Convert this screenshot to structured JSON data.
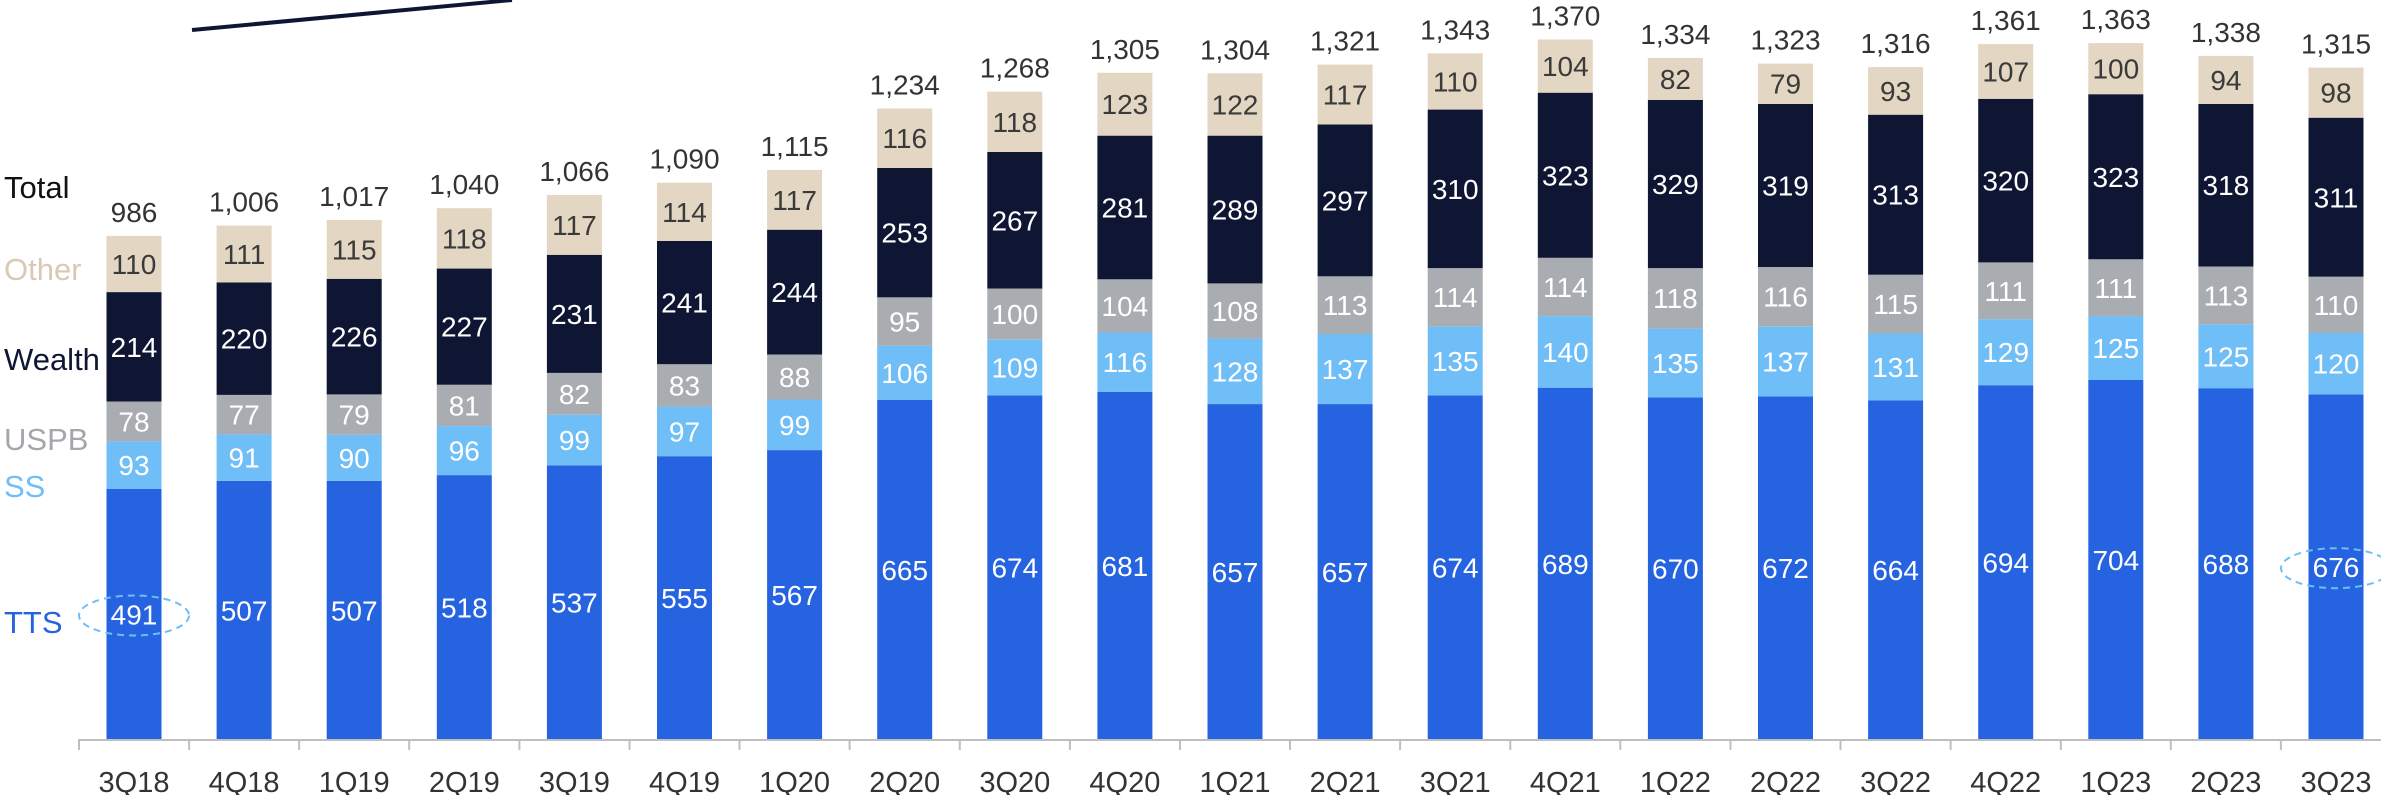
{
  "chart_data": {
    "type": "bar",
    "stacked": true,
    "title": "",
    "xlabel": "",
    "ylabel": "",
    "categories": [
      "3Q18",
      "4Q18",
      "1Q19",
      "2Q19",
      "3Q19",
      "4Q19",
      "1Q20",
      "2Q20",
      "3Q20",
      "4Q20",
      "1Q21",
      "2Q21",
      "3Q21",
      "4Q21",
      "1Q22",
      "2Q22",
      "3Q22",
      "4Q22",
      "1Q23",
      "2Q23",
      "3Q23"
    ],
    "series": [
      {
        "name": "TTS",
        "color": "#2563e0",
        "label_color": "#ffffff",
        "values": [
          491,
          507,
          507,
          518,
          537,
          555,
          567,
          665,
          674,
          681,
          657,
          657,
          674,
          689,
          670,
          672,
          664,
          694,
          704,
          688,
          676
        ]
      },
      {
        "name": "SS",
        "color": "#6fbef7",
        "label_color": "#ffffff",
        "values": [
          93,
          91,
          90,
          96,
          99,
          97,
          99,
          106,
          109,
          116,
          128,
          137,
          135,
          140,
          135,
          137,
          131,
          129,
          125,
          125,
          120
        ]
      },
      {
        "name": "USPB",
        "color": "#a9adb1",
        "label_color": "#ffffff",
        "values": [
          78,
          77,
          79,
          81,
          82,
          83,
          88,
          95,
          100,
          104,
          108,
          113,
          114,
          114,
          118,
          116,
          115,
          111,
          111,
          113,
          110
        ]
      },
      {
        "name": "Wealth",
        "color": "#0e1633",
        "label_color": "#ffffff",
        "values": [
          214,
          220,
          226,
          227,
          231,
          241,
          244,
          253,
          267,
          281,
          289,
          297,
          310,
          323,
          329,
          319,
          313,
          320,
          323,
          318,
          311
        ]
      },
      {
        "name": "Other",
        "color": "#e3d6c2",
        "label_color": "#3a3a3a",
        "values": [
          110,
          111,
          115,
          118,
          117,
          114,
          117,
          116,
          118,
          123,
          122,
          117,
          110,
          104,
          82,
          79,
          93,
          107,
          100,
          94,
          98
        ]
      }
    ],
    "totals": [
      "986",
      "1,006",
      "1,017",
      "1,040",
      "1,066",
      "1,090",
      "1,115",
      "1,234",
      "1,268",
      "1,305",
      "1,304",
      "1,321",
      "1,343",
      "1,370",
      "1,334",
      "1,323",
      "1,316",
      "1,361",
      "1,363",
      "1,338",
      "1,315"
    ],
    "highlighted": [
      {
        "category": "3Q18",
        "series": "TTS"
      },
      {
        "category": "3Q23",
        "series": "TTS"
      }
    ],
    "legend": {
      "placement": "left",
      "total_label": "Total",
      "items": [
        {
          "name": "Other",
          "color": "#d9c9b4"
        },
        {
          "name": "Wealth",
          "color": "#0e1633"
        },
        {
          "name": "USPB",
          "color": "#a3a7ab"
        },
        {
          "name": "SS",
          "color": "#6fbef7"
        },
        {
          "name": "TTS",
          "color": "#2563e0"
        }
      ]
    },
    "grid": false,
    "ylim": [
      0,
      1450
    ]
  }
}
